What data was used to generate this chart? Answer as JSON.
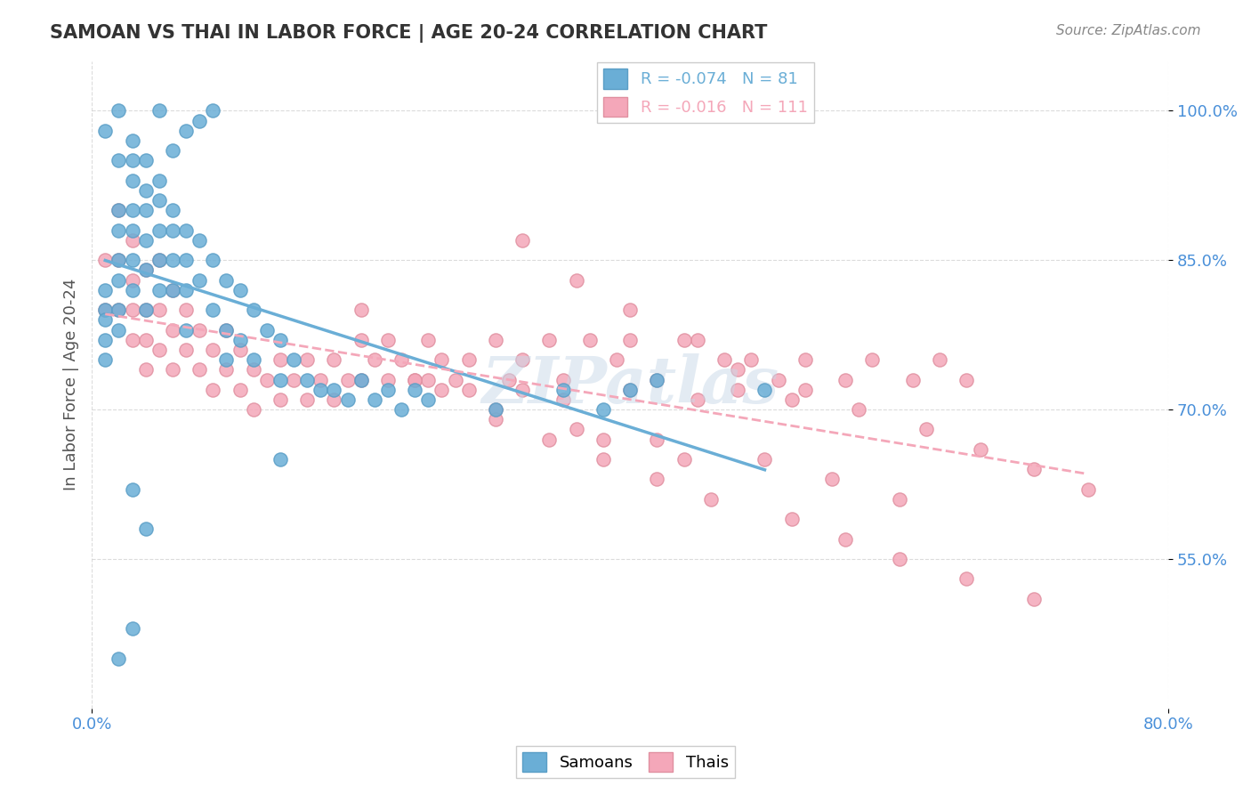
{
  "title": "SAMOAN VS THAI IN LABOR FORCE | AGE 20-24 CORRELATION CHART",
  "source_text": "Source: ZipAtlas.com",
  "xlabel": "",
  "ylabel": "In Labor Force | Age 20-24",
  "xlim": [
    0.0,
    0.8
  ],
  "ylim": [
    0.4,
    1.05
  ],
  "yticks": [
    0.55,
    0.7,
    0.85,
    1.0
  ],
  "ytick_labels": [
    "55.0%",
    "70.0%",
    "85.0%",
    "100.0%"
  ],
  "xticks": [
    0.0,
    0.8
  ],
  "xtick_labels": [
    "0.0%",
    "80.0%"
  ],
  "samoans_R": -0.074,
  "samoans_N": 81,
  "thais_R": -0.016,
  "thais_N": 111,
  "samoan_color": "#6aaed6",
  "thai_color": "#f4a7b9",
  "samoan_marker_edge": "#5a9ec6",
  "thai_marker_edge": "#e090a0",
  "watermark": "ZIPatlas",
  "watermark_color": "#c8d8e8",
  "samoans_x": [
    0.01,
    0.01,
    0.01,
    0.01,
    0.01,
    0.02,
    0.02,
    0.02,
    0.02,
    0.02,
    0.02,
    0.03,
    0.03,
    0.03,
    0.03,
    0.03,
    0.03,
    0.03,
    0.04,
    0.04,
    0.04,
    0.04,
    0.04,
    0.05,
    0.05,
    0.05,
    0.05,
    0.05,
    0.06,
    0.06,
    0.06,
    0.06,
    0.07,
    0.07,
    0.07,
    0.07,
    0.08,
    0.08,
    0.09,
    0.09,
    0.1,
    0.1,
    0.1,
    0.11,
    0.11,
    0.12,
    0.12,
    0.13,
    0.14,
    0.14,
    0.15,
    0.16,
    0.17,
    0.18,
    0.19,
    0.2,
    0.21,
    0.22,
    0.23,
    0.24,
    0.25,
    0.3,
    0.35,
    0.38,
    0.4,
    0.42,
    0.5,
    0.14,
    0.03,
    0.04,
    0.06,
    0.07,
    0.08,
    0.09,
    0.05,
    0.02,
    0.01,
    0.03,
    0.02,
    0.02,
    0.04
  ],
  "samoans_y": [
    0.82,
    0.8,
    0.79,
    0.77,
    0.75,
    0.95,
    0.9,
    0.88,
    0.85,
    0.83,
    0.8,
    0.97,
    0.95,
    0.93,
    0.9,
    0.88,
    0.85,
    0.82,
    0.95,
    0.92,
    0.9,
    0.87,
    0.84,
    0.93,
    0.91,
    0.88,
    0.85,
    0.82,
    0.9,
    0.88,
    0.85,
    0.82,
    0.88,
    0.85,
    0.82,
    0.78,
    0.87,
    0.83,
    0.85,
    0.8,
    0.83,
    0.78,
    0.75,
    0.82,
    0.77,
    0.8,
    0.75,
    0.78,
    0.77,
    0.73,
    0.75,
    0.73,
    0.72,
    0.72,
    0.71,
    0.73,
    0.71,
    0.72,
    0.7,
    0.72,
    0.71,
    0.7,
    0.72,
    0.7,
    0.72,
    0.73,
    0.72,
    0.65,
    0.62,
    0.58,
    0.96,
    0.98,
    0.99,
    1.0,
    1.0,
    1.0,
    0.98,
    0.48,
    0.45,
    0.78,
    0.8
  ],
  "thais_x": [
    0.01,
    0.01,
    0.02,
    0.02,
    0.02,
    0.03,
    0.03,
    0.03,
    0.03,
    0.04,
    0.04,
    0.04,
    0.04,
    0.05,
    0.05,
    0.05,
    0.06,
    0.06,
    0.06,
    0.07,
    0.07,
    0.08,
    0.08,
    0.09,
    0.09,
    0.1,
    0.1,
    0.11,
    0.11,
    0.12,
    0.12,
    0.13,
    0.14,
    0.14,
    0.15,
    0.16,
    0.16,
    0.17,
    0.18,
    0.18,
    0.19,
    0.2,
    0.2,
    0.21,
    0.22,
    0.23,
    0.24,
    0.25,
    0.25,
    0.26,
    0.27,
    0.28,
    0.3,
    0.31,
    0.32,
    0.34,
    0.35,
    0.37,
    0.39,
    0.4,
    0.42,
    0.45,
    0.47,
    0.49,
    0.51,
    0.53,
    0.56,
    0.58,
    0.61,
    0.63,
    0.65,
    0.28,
    0.3,
    0.32,
    0.35,
    0.4,
    0.45,
    0.48,
    0.52,
    0.36,
    0.38,
    0.42,
    0.44,
    0.5,
    0.55,
    0.6,
    0.2,
    0.22,
    0.24,
    0.26,
    0.3,
    0.34,
    0.38,
    0.42,
    0.46,
    0.52,
    0.56,
    0.6,
    0.65,
    0.7,
    0.32,
    0.36,
    0.4,
    0.44,
    0.48,
    0.53,
    0.57,
    0.62,
    0.66,
    0.7,
    0.74
  ],
  "thais_y": [
    0.85,
    0.8,
    0.9,
    0.85,
    0.8,
    0.87,
    0.83,
    0.8,
    0.77,
    0.84,
    0.8,
    0.77,
    0.74,
    0.85,
    0.8,
    0.76,
    0.82,
    0.78,
    0.74,
    0.8,
    0.76,
    0.78,
    0.74,
    0.76,
    0.72,
    0.78,
    0.74,
    0.76,
    0.72,
    0.74,
    0.7,
    0.73,
    0.75,
    0.71,
    0.73,
    0.75,
    0.71,
    0.73,
    0.75,
    0.71,
    0.73,
    0.77,
    0.73,
    0.75,
    0.73,
    0.75,
    0.73,
    0.77,
    0.73,
    0.75,
    0.73,
    0.75,
    0.77,
    0.73,
    0.75,
    0.77,
    0.73,
    0.77,
    0.75,
    0.77,
    0.73,
    0.77,
    0.75,
    0.75,
    0.73,
    0.75,
    0.73,
    0.75,
    0.73,
    0.75,
    0.73,
    0.72,
    0.7,
    0.72,
    0.71,
    0.72,
    0.71,
    0.72,
    0.71,
    0.68,
    0.67,
    0.67,
    0.65,
    0.65,
    0.63,
    0.61,
    0.8,
    0.77,
    0.73,
    0.72,
    0.69,
    0.67,
    0.65,
    0.63,
    0.61,
    0.59,
    0.57,
    0.55,
    0.53,
    0.51,
    0.87,
    0.83,
    0.8,
    0.77,
    0.74,
    0.72,
    0.7,
    0.68,
    0.66,
    0.64,
    0.62
  ]
}
